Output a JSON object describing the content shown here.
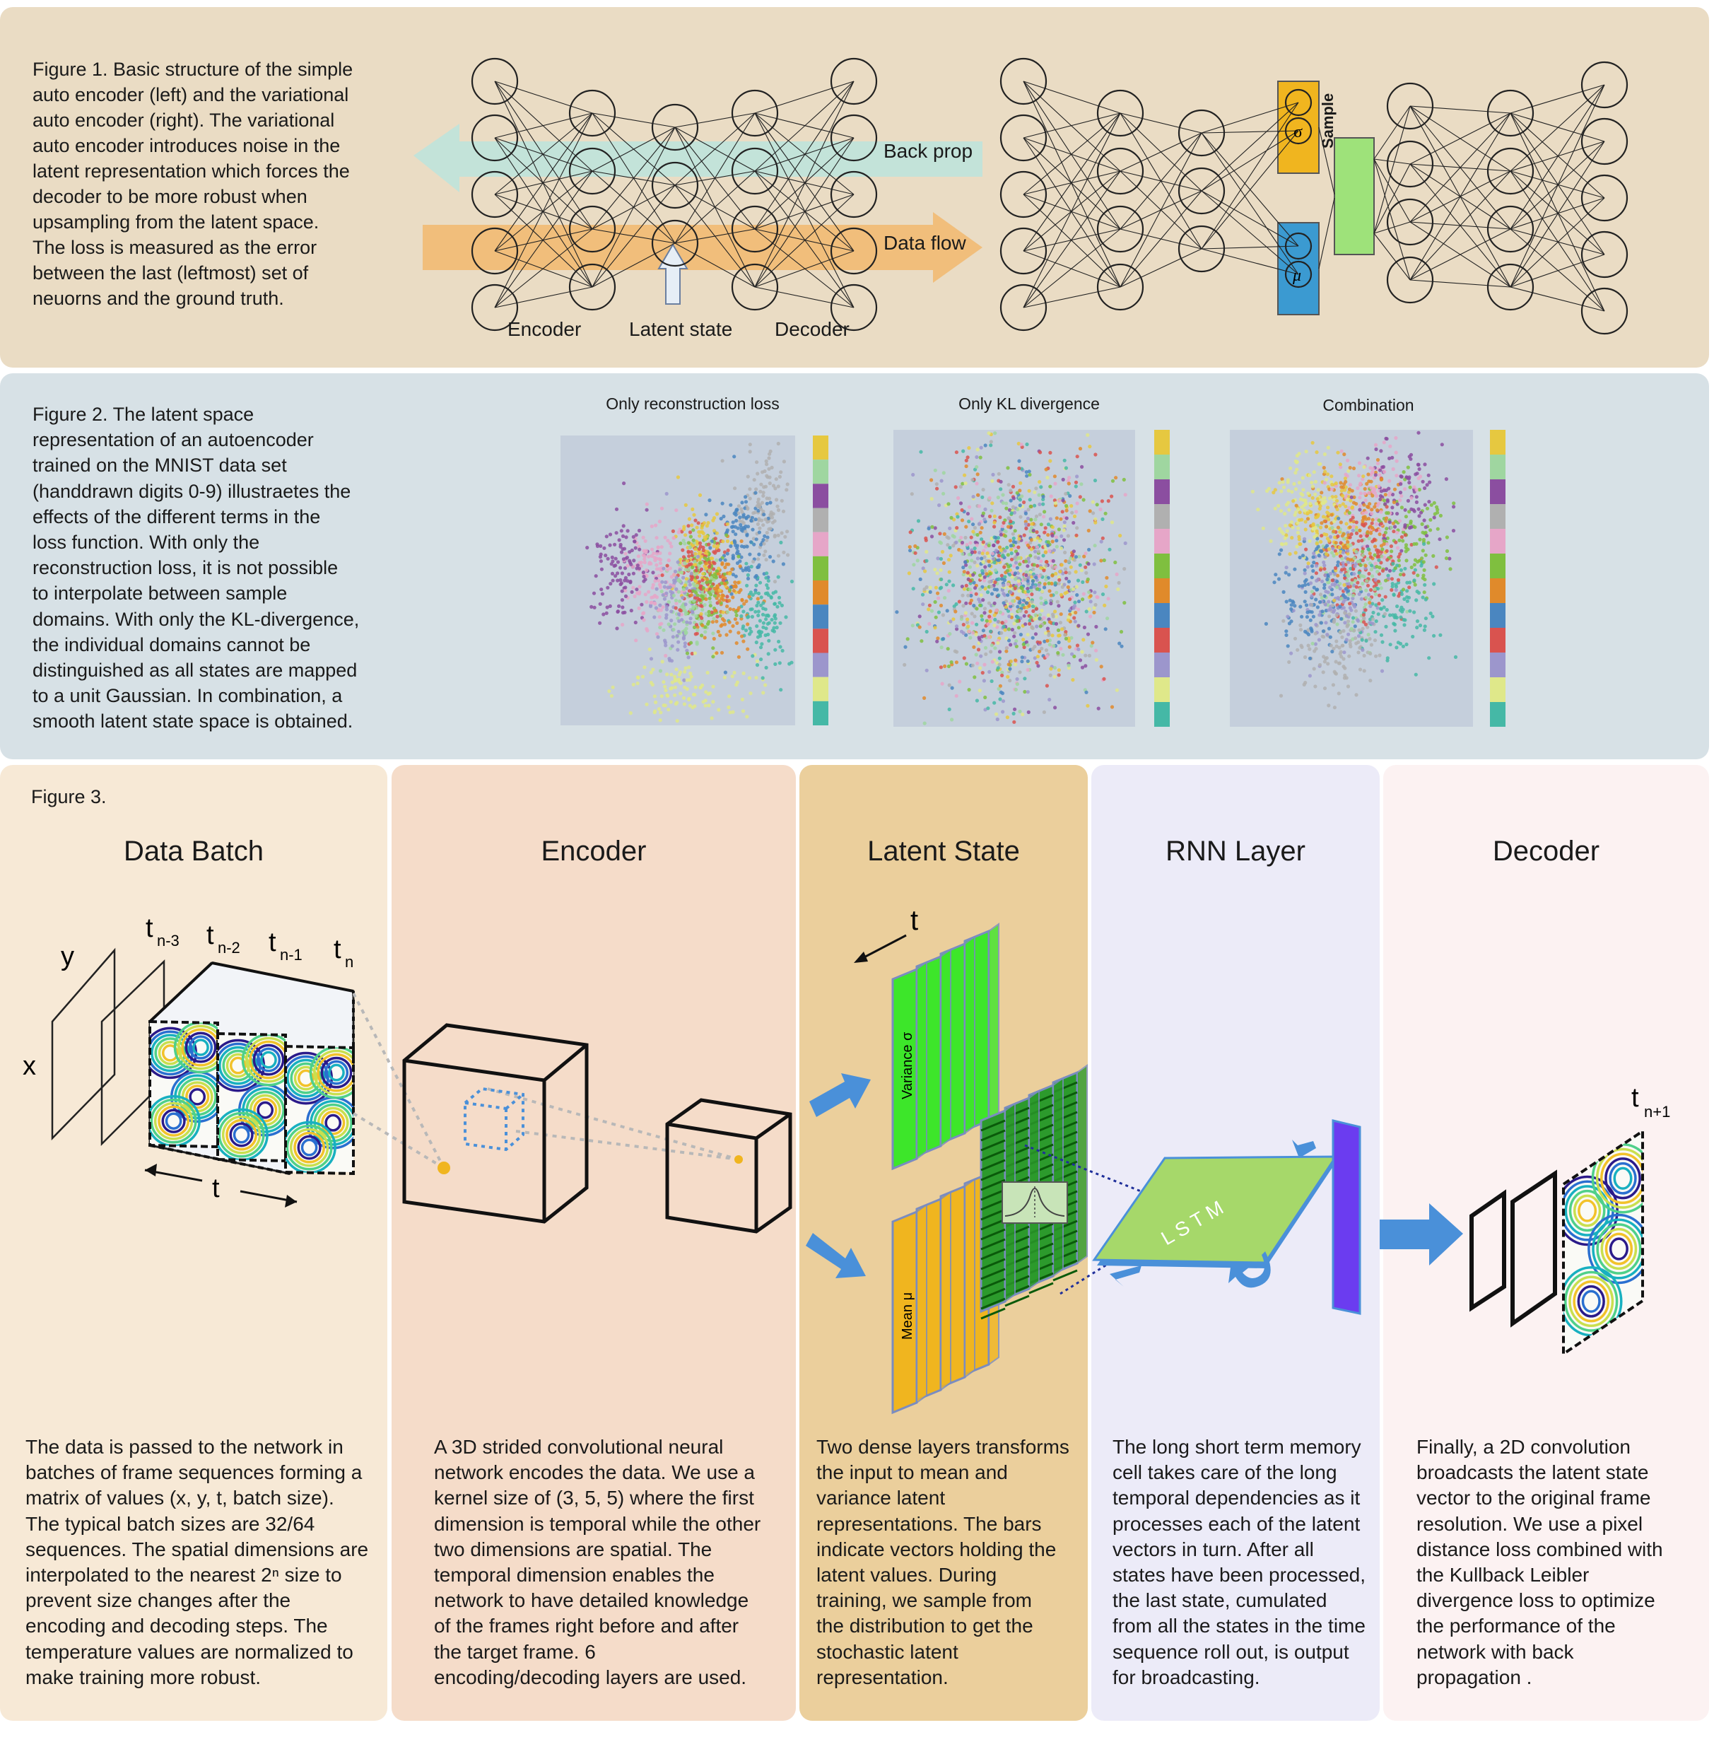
{
  "figure1": {
    "caption": "Figure 1. Basic structure of the simple\nauto encoder (left) and the variational\nauto encoder (right). The variational\nauto encoder introduces noise in the\nlatent representation which forces the\ndecoder to be more robust when\nupsampling from the latent space.\nThe loss is measured as the error\nbetween the last (leftmost) set of\nneuorns and the ground truth.",
    "back_prop": "Back prop",
    "data_flow": "Data flow",
    "encoder": "Encoder",
    "latent_state": "Latent state",
    "decoder": "Decoder",
    "sigma": "σ",
    "mu": "μ",
    "sample": "Sample"
  },
  "figure2": {
    "caption": "Figure 2. The latent space\nrepresentation of an autoencoder\ntrained on the MNIST data set\n(handdrawn digits 0-9) illustraetes the\neffects of the different terms in the\nloss function. With only the\nreconstruction loss, it is not possible\nto interpolate between sample\ndomains. With only the KL-divergence,\nthe individual domains cannot be\ndistinguished as all states are mapped\nto a unit Gaussian.  In combination, a\nsmooth latent state space is obtained.",
    "plots": [
      {
        "title": "Only reconstruction loss"
      },
      {
        "title": "Only KL divergence"
      },
      {
        "title": "Combination"
      }
    ],
    "digit_colors": [
      "#45b8a6",
      "#dfe88a",
      "#9c96cc",
      "#d9534f",
      "#4a86c0",
      "#e08a2b",
      "#7fbf3f",
      "#e6a6c8",
      "#b0b0b0",
      "#8b4ea0",
      "#9fd6a0",
      "#e6c840"
    ]
  },
  "figure3": {
    "label": "Figure 3.",
    "columns": [
      {
        "title": "Data Batch",
        "text": "The data is passed to the network in\nbatches of frame sequences forming a\nmatrix of values (x, y, t, batch size).\nThe typical batch sizes are 32/64\nsequences. The spatial dimensions are\ninterpolated to the nearest 2ⁿ size to\nprevent size changes after the\nencoding and decoding steps. The\ntemperature values are normalized to\nmake training more robust."
      },
      {
        "title": "Encoder",
        "text": "A 3D strided convolutional neural\nnetwork encodes the data. We use a\nkernel size of (3, 5, 5) where the first\ndimension is temporal while the other\ntwo dimensions are spatial. The\ntemporal dimension enables the\nnetwork to have detailed knowledge\nof the frames right before and after\nthe target frame. 6\nencoding/decoding layers are used."
      },
      {
        "title": "Latent State",
        "text": "Two dense layers transforms\nthe input to mean and\nvariance latent\nrepresentations. The bars\nindicate vectors holding the\nlatent values.  During\ntraining, we sample from\nthe distribution to get the\nstochastic latent\nrepresentation."
      },
      {
        "title": "RNN Layer",
        "text": "The long short term memory\ncell takes care of the long\ntemporal dependencies as it\nprocesses each of the latent\nvectors in turn. After all\nstates have been processed,\nthe last state, cumulated\nfrom all the states in the time\nsequence roll out, is output\nfor broadcasting."
      },
      {
        "title": "Decoder",
        "text": "Finally, a 2D convolution\nbroadcasts the latent state\nvector to the original frame\nresolution. We use a pixel\ndistance loss combined with\nthe Kullback Leibler\ndivergence loss to optimize\nthe performance of the\nnetwork with back\npropagation ."
      }
    ],
    "axis_y": "y",
    "axis_x": "x",
    "axis_t": "t",
    "t_labels": [
      "t",
      "t",
      "t",
      "t"
    ],
    "t_subs": [
      "n-3",
      "n-2",
      "n-1",
      "n"
    ],
    "latent_t": "t",
    "variance_label": "Variance σ",
    "mean_label": "Mean μ",
    "lstm_label": "L S T M",
    "decoder_t": "t",
    "decoder_t_sub": "n+1"
  },
  "colors": {
    "green": "#3de62a",
    "orange": "#f0b51f",
    "blue_arrow": "#4a90d9",
    "lstm": "#a6d86a",
    "purple": "#6b3cf0"
  }
}
